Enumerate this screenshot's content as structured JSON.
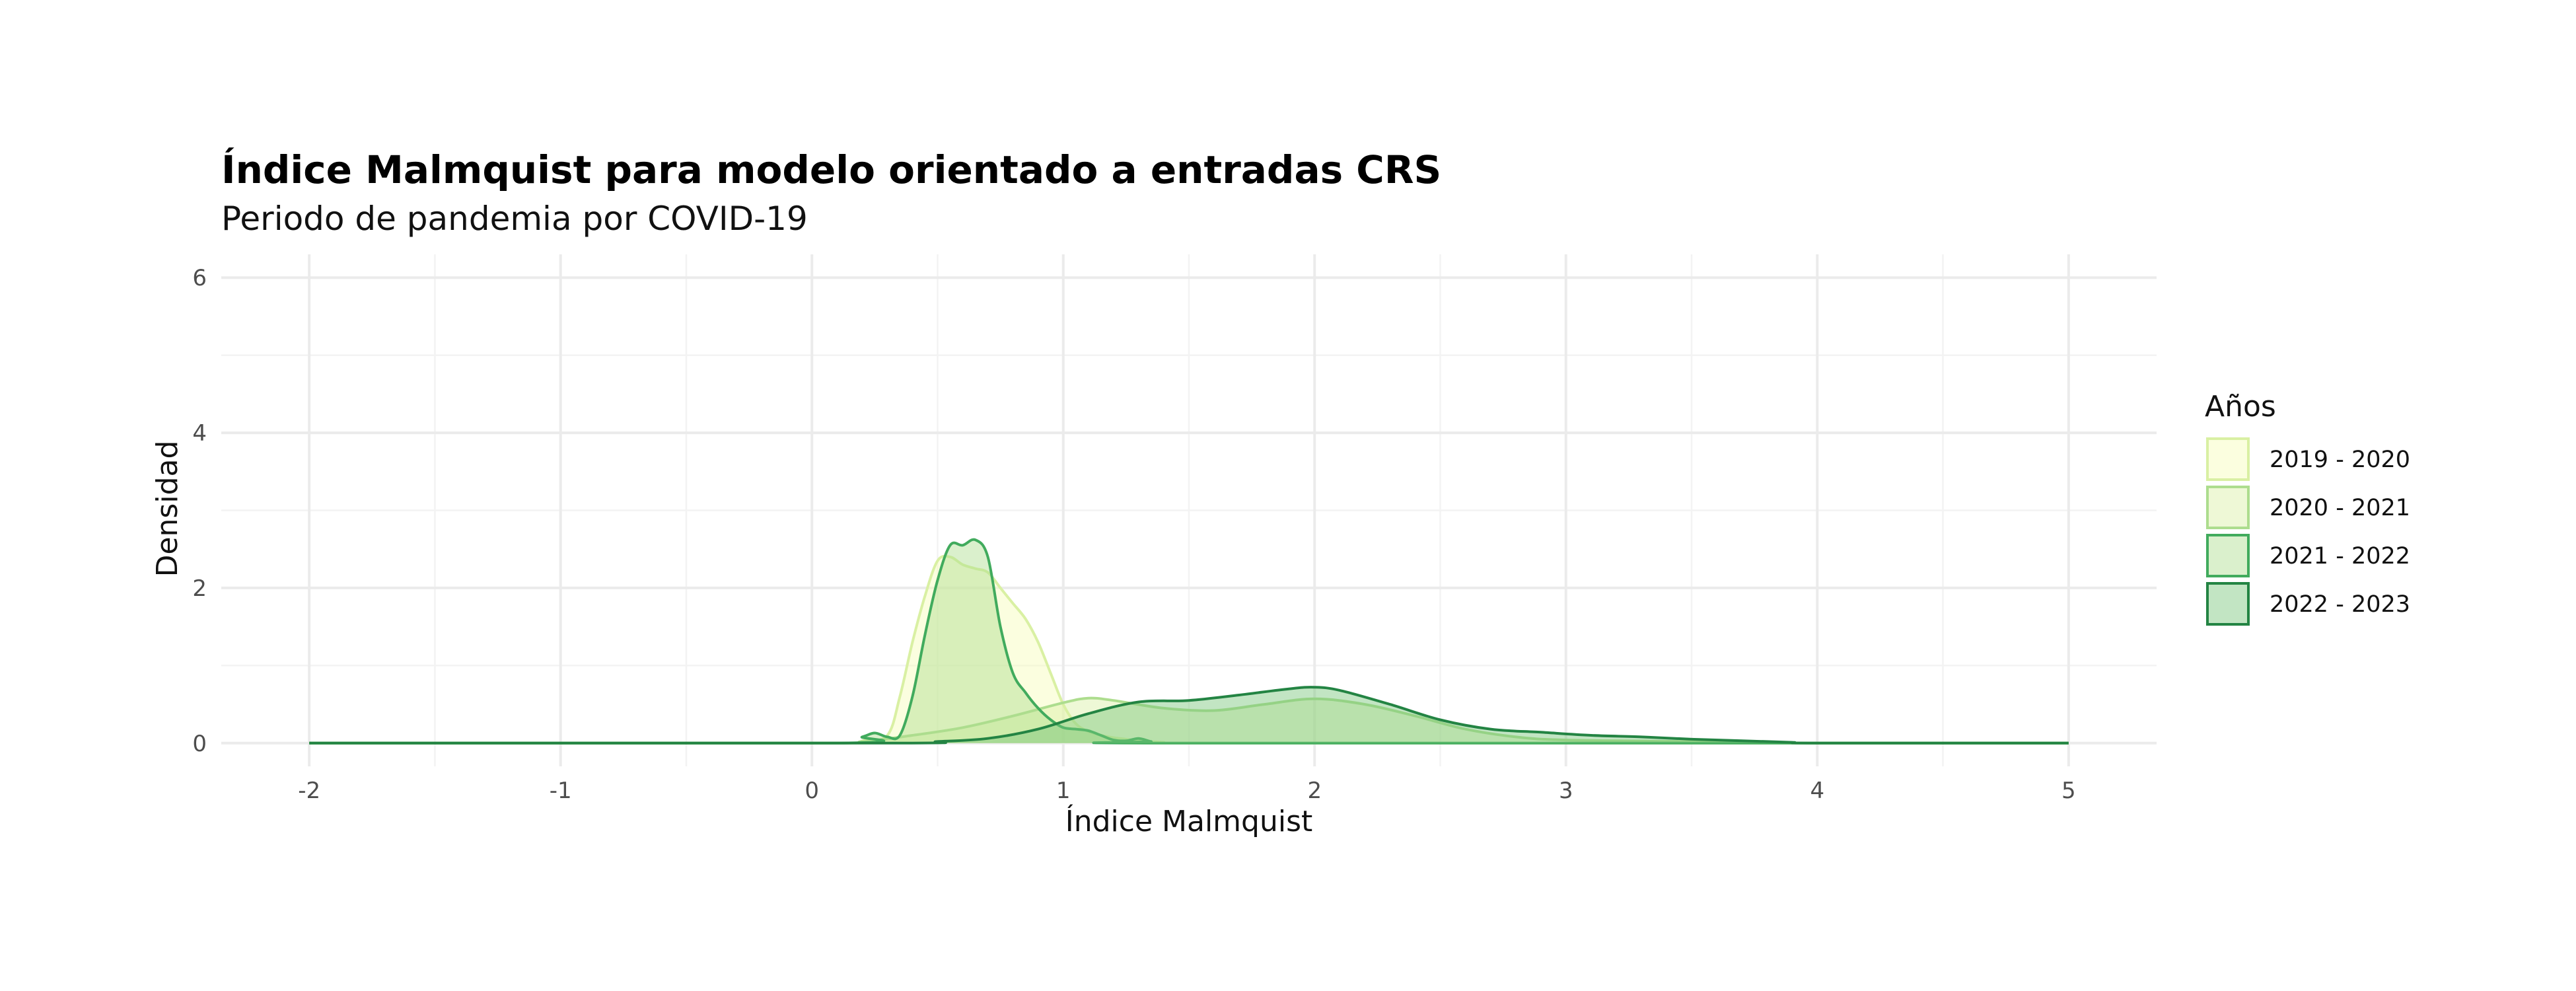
{
  "chart_data": {
    "type": "area",
    "title": "Índice Malmquist para modelo orientado a entradas CRS",
    "subtitle": "Periodo de pandemia por COVID-19",
    "xlabel": "Índice Malmquist",
    "ylabel": "Densidad",
    "xlim": [
      -2.35,
      5.35
    ],
    "ylim": [
      -0.3,
      6.3
    ],
    "x_ticks": [
      -2,
      -1,
      0,
      1,
      2,
      3,
      4,
      5
    ],
    "y_ticks": [
      0,
      2,
      4,
      6
    ],
    "grid": true,
    "legend": {
      "title": "Años",
      "placement": "right"
    },
    "series": [
      {
        "name": "2019 - 2020",
        "fill": "#f7fcb9",
        "line": "#d9f0a3",
        "x": [
          -2,
          0.1,
          0.2,
          0.3,
          0.35,
          0.4,
          0.45,
          0.5,
          0.55,
          0.6,
          0.65,
          0.7,
          0.75,
          0.8,
          0.85,
          0.9,
          0.95,
          1.0,
          1.05,
          1.1,
          1.15,
          1.2,
          1.25,
          1.3,
          1.4,
          1.5,
          5
        ],
        "y": [
          0,
          0,
          0.03,
          0.1,
          0.6,
          1.3,
          1.9,
          2.35,
          2.4,
          2.3,
          2.25,
          2.2,
          2.0,
          1.8,
          1.6,
          1.3,
          0.9,
          0.5,
          0.25,
          0.15,
          0.1,
          0.07,
          0.05,
          0.03,
          0.01,
          0,
          0
        ]
      },
      {
        "name": "2020 - 2021",
        "fill": "#d9f0a3",
        "line": "#addd8e",
        "x": [
          -2,
          0,
          0.2,
          0.4,
          0.6,
          0.8,
          1.0,
          1.1,
          1.2,
          1.4,
          1.6,
          1.8,
          2.0,
          2.2,
          2.4,
          2.6,
          2.8,
          3.0,
          3.5,
          4.0,
          5
        ],
        "y": [
          0,
          0,
          0.02,
          0.1,
          0.2,
          0.35,
          0.52,
          0.58,
          0.55,
          0.45,
          0.42,
          0.5,
          0.57,
          0.5,
          0.35,
          0.18,
          0.08,
          0.04,
          0.02,
          0,
          0
        ]
      },
      {
        "name": "2021 - 2022",
        "fill": "#addd8e",
        "line": "#41ab5d",
        "x": [
          -2,
          0.1,
          0.2,
          0.25,
          0.3,
          0.35,
          0.4,
          0.45,
          0.5,
          0.55,
          0.6,
          0.65,
          0.7,
          0.75,
          0.8,
          0.85,
          0.9,
          0.95,
          1.0,
          1.05,
          1.1,
          1.15,
          1.2,
          1.25,
          1.3,
          1.35,
          1.4,
          5
        ],
        "y": [
          0,
          0,
          0.08,
          0.13,
          0.08,
          0.1,
          0.6,
          1.4,
          2.1,
          2.55,
          2.55,
          2.62,
          2.4,
          1.5,
          0.9,
          0.65,
          0.45,
          0.3,
          0.2,
          0.18,
          0.16,
          0.1,
          0.04,
          0.03,
          0.06,
          0.02,
          0,
          0
        ]
      },
      {
        "name": "2022 - 2023",
        "fill": "#78c679",
        "line": "#238443",
        "x": [
          -2,
          0.3,
          0.5,
          0.7,
          0.9,
          1.1,
          1.3,
          1.5,
          1.7,
          1.9,
          2.0,
          2.1,
          2.3,
          2.5,
          2.7,
          2.9,
          3.1,
          3.3,
          3.5,
          3.7,
          3.9,
          4.0,
          5
        ],
        "y": [
          0,
          0,
          0.02,
          0.06,
          0.18,
          0.38,
          0.53,
          0.55,
          0.62,
          0.7,
          0.72,
          0.68,
          0.5,
          0.3,
          0.18,
          0.14,
          0.1,
          0.08,
          0.05,
          0.03,
          0.01,
          0,
          0
        ]
      }
    ]
  }
}
